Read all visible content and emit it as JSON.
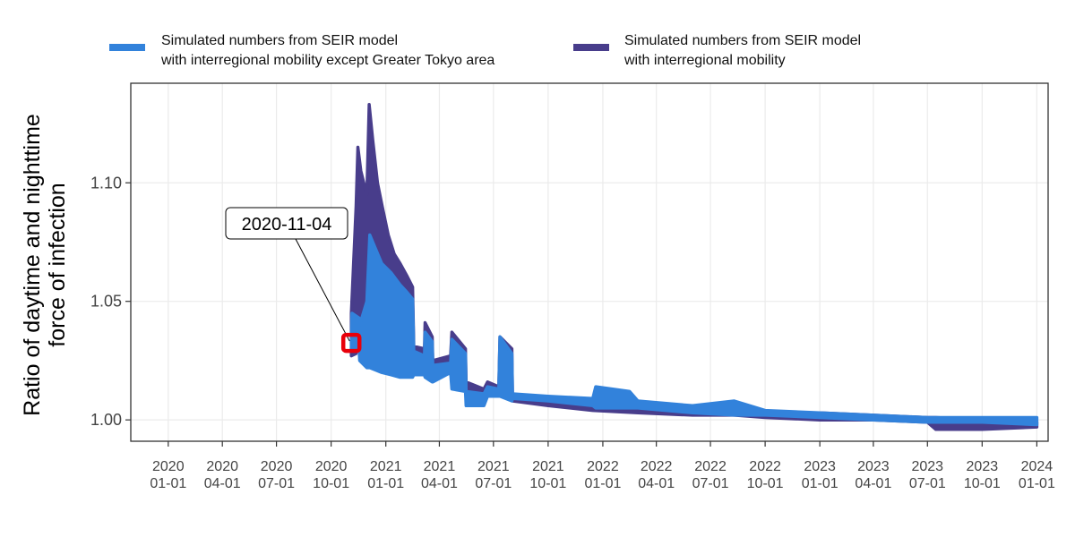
{
  "chart_data": {
    "type": "line",
    "title": "",
    "xlabel": "",
    "ylabel_lines": [
      "Ratio of daytime and nighttime",
      "force of infection"
    ],
    "xlim": [
      "2019-10-30",
      "2024-01-20"
    ],
    "ylim": [
      0.991,
      1.142
    ],
    "grid": true,
    "legend_position": "top",
    "x_ticks": [
      {
        "date": "2020-01-01",
        "line1": "2020",
        "line2": "01-01"
      },
      {
        "date": "2020-04-01",
        "line1": "2020",
        "line2": "04-01"
      },
      {
        "date": "2020-07-01",
        "line1": "2020",
        "line2": "07-01"
      },
      {
        "date": "2020-10-01",
        "line1": "2020",
        "line2": "10-01"
      },
      {
        "date": "2021-01-01",
        "line1": "2021",
        "line2": "01-01"
      },
      {
        "date": "2021-04-01",
        "line1": "2021",
        "line2": "04-01"
      },
      {
        "date": "2021-07-01",
        "line1": "2021",
        "line2": "07-01"
      },
      {
        "date": "2021-10-01",
        "line1": "2021",
        "line2": "10-01"
      },
      {
        "date": "2022-01-01",
        "line1": "2022",
        "line2": "01-01"
      },
      {
        "date": "2022-04-01",
        "line1": "2022",
        "line2": "04-01"
      },
      {
        "date": "2022-07-01",
        "line1": "2022",
        "line2": "07-01"
      },
      {
        "date": "2022-10-01",
        "line1": "2022",
        "line2": "10-01"
      },
      {
        "date": "2023-01-01",
        "line1": "2023",
        "line2": "01-01"
      },
      {
        "date": "2023-04-01",
        "line1": "2023",
        "line2": "04-01"
      },
      {
        "date": "2023-07-01",
        "line1": "2023",
        "line2": "07-01"
      },
      {
        "date": "2023-10-01",
        "line1": "2023",
        "line2": "10-01"
      },
      {
        "date": "2024-01-01",
        "line1": "2024",
        "line2": "01-01"
      }
    ],
    "y_ticks": [
      {
        "value": 1.0,
        "label": "1.00"
      },
      {
        "value": 1.05,
        "label": "1.05"
      },
      {
        "value": 1.1,
        "label": "1.10"
      }
    ],
    "series": [
      {
        "name_lines": [
          "Simulated numbers from SEIR model",
          "with interregional mobility"
        ],
        "color": "#483D8B",
        "bands": [
          {
            "x": "2020-11-04",
            "low": 1.027,
            "high": 1.045
          },
          {
            "x": "2020-11-12",
            "low": 1.028,
            "high": 1.09
          },
          {
            "x": "2020-11-15",
            "low": 1.045,
            "high": 1.115
          },
          {
            "x": "2020-11-20",
            "low": 1.04,
            "high": 1.105
          },
          {
            "x": "2020-11-25",
            "low": 1.045,
            "high": 1.1
          },
          {
            "x": "2020-11-30",
            "low": 1.04,
            "high": 1.095
          },
          {
            "x": "2020-12-04",
            "low": 1.04,
            "high": 1.133
          },
          {
            "x": "2020-12-10",
            "low": 1.04,
            "high": 1.118
          },
          {
            "x": "2020-12-18",
            "low": 1.03,
            "high": 1.1
          },
          {
            "x": "2020-12-26",
            "low": 1.028,
            "high": 1.09
          },
          {
            "x": "2021-01-05",
            "low": 1.025,
            "high": 1.078
          },
          {
            "x": "2021-01-15",
            "low": 1.022,
            "high": 1.07
          },
          {
            "x": "2021-01-25",
            "low": 1.021,
            "high": 1.066
          },
          {
            "x": "2021-02-05",
            "low": 1.02,
            "high": 1.061
          },
          {
            "x": "2021-02-15",
            "low": 1.02,
            "high": 1.056
          },
          {
            "x": "2021-02-17",
            "low": 1.02,
            "high": 1.031
          },
          {
            "x": "2021-03-07",
            "low": 1.021,
            "high": 1.03
          },
          {
            "x": "2021-03-08",
            "low": 1.02,
            "high": 1.041
          },
          {
            "x": "2021-03-20",
            "low": 1.018,
            "high": 1.035
          },
          {
            "x": "2021-03-21",
            "low": 1.018,
            "high": 1.025
          },
          {
            "x": "2021-04-20",
            "low": 1.021,
            "high": 1.027
          },
          {
            "x": "2021-04-22",
            "low": 1.021,
            "high": 1.037
          },
          {
            "x": "2021-05-15",
            "low": 1.015,
            "high": 1.03
          },
          {
            "x": "2021-05-16",
            "low": 1.012,
            "high": 1.016
          },
          {
            "x": "2021-06-15",
            "low": 1.01,
            "high": 1.013
          },
          {
            "x": "2021-06-21",
            "low": 1.012,
            "high": 1.016
          },
          {
            "x": "2021-07-10",
            "low": 1.011,
            "high": 1.014
          },
          {
            "x": "2021-07-12",
            "low": 1.025,
            "high": 1.035
          },
          {
            "x": "2021-08-01",
            "low": 1.022,
            "high": 1.03
          },
          {
            "x": "2021-08-02",
            "low": 1.008,
            "high": 1.01
          },
          {
            "x": "2021-10-01",
            "low": 1.006,
            "high": 1.009
          },
          {
            "x": "2021-12-15",
            "low": 1.004,
            "high": 1.007
          },
          {
            "x": "2022-03-01",
            "low": 1.003,
            "high": 1.006
          },
          {
            "x": "2022-06-01",
            "low": 1.002,
            "high": 1.004
          },
          {
            "x": "2022-08-10",
            "low": 1.002,
            "high": 1.006
          },
          {
            "x": "2022-10-01",
            "low": 1.001,
            "high": 1.003
          },
          {
            "x": "2023-01-01",
            "low": 1.0,
            "high": 1.003
          },
          {
            "x": "2023-04-01",
            "low": 1.0,
            "high": 1.002
          },
          {
            "x": "2023-07-01",
            "low": 0.999,
            "high": 1.001
          },
          {
            "x": "2023-07-15",
            "low": 0.996,
            "high": 1.001
          },
          {
            "x": "2023-10-01",
            "low": 0.996,
            "high": 1.0
          },
          {
            "x": "2024-01-01",
            "low": 0.997,
            "high": 0.999
          }
        ]
      },
      {
        "name_lines": [
          "Simulated numbers from SEIR model",
          "with interregional mobility except Greater Tokyo area"
        ],
        "color": "#3282DB",
        "bands": [
          {
            "x": "2020-11-04",
            "low": 1.03,
            "high": 1.033
          },
          {
            "x": "2020-11-05",
            "low": 1.03,
            "high": 1.045
          },
          {
            "x": "2020-11-17",
            "low": 1.03,
            "high": 1.043
          },
          {
            "x": "2020-11-18",
            "low": 1.025,
            "high": 1.04
          },
          {
            "x": "2020-11-30",
            "low": 1.022,
            "high": 1.05
          },
          {
            "x": "2020-12-05",
            "low": 1.022,
            "high": 1.078
          },
          {
            "x": "2020-12-15",
            "low": 1.021,
            "high": 1.072
          },
          {
            "x": "2020-12-25",
            "low": 1.02,
            "high": 1.066
          },
          {
            "x": "2021-01-10",
            "low": 1.019,
            "high": 1.062
          },
          {
            "x": "2021-01-25",
            "low": 1.018,
            "high": 1.057
          },
          {
            "x": "2021-02-05",
            "low": 1.018,
            "high": 1.054
          },
          {
            "x": "2021-02-15",
            "low": 1.018,
            "high": 1.051
          },
          {
            "x": "2021-02-17",
            "low": 1.019,
            "high": 1.029
          },
          {
            "x": "2021-03-07",
            "low": 1.019,
            "high": 1.027
          },
          {
            "x": "2021-03-08",
            "low": 1.018,
            "high": 1.037
          },
          {
            "x": "2021-03-20",
            "low": 1.016,
            "high": 1.033
          },
          {
            "x": "2021-03-21",
            "low": 1.016,
            "high": 1.023
          },
          {
            "x": "2021-04-20",
            "low": 1.02,
            "high": 1.024
          },
          {
            "x": "2021-04-22",
            "low": 1.013,
            "high": 1.034
          },
          {
            "x": "2021-05-15",
            "low": 1.012,
            "high": 1.028
          },
          {
            "x": "2021-05-16",
            "low": 1.006,
            "high": 1.012
          },
          {
            "x": "2021-06-15",
            "low": 1.006,
            "high": 1.011
          },
          {
            "x": "2021-06-21",
            "low": 1.01,
            "high": 1.014
          },
          {
            "x": "2021-07-10",
            "low": 1.01,
            "high": 1.013
          },
          {
            "x": "2021-07-12",
            "low": 1.01,
            "high": 1.035
          },
          {
            "x": "2021-08-01",
            "low": 1.008,
            "high": 1.028
          },
          {
            "x": "2021-08-02",
            "low": 1.009,
            "high": 1.011
          },
          {
            "x": "2021-10-01",
            "low": 1.008,
            "high": 1.01
          },
          {
            "x": "2021-12-15",
            "low": 1.006,
            "high": 1.009
          },
          {
            "x": "2021-12-20",
            "low": 1.005,
            "high": 1.014
          },
          {
            "x": "2022-02-15",
            "low": 1.005,
            "high": 1.012
          },
          {
            "x": "2022-03-01",
            "low": 1.005,
            "high": 1.008
          },
          {
            "x": "2022-06-01",
            "low": 1.003,
            "high": 1.006
          },
          {
            "x": "2022-08-10",
            "low": 1.002,
            "high": 1.008
          },
          {
            "x": "2022-10-01",
            "low": 1.002,
            "high": 1.004
          },
          {
            "x": "2023-01-01",
            "low": 1.001,
            "high": 1.003
          },
          {
            "x": "2023-04-01",
            "low": 1.0,
            "high": 1.002
          },
          {
            "x": "2023-07-01",
            "low": 0.999,
            "high": 1.001
          },
          {
            "x": "2023-10-01",
            "low": 0.999,
            "high": 1.001
          },
          {
            "x": "2024-01-01",
            "low": 0.998,
            "high": 1.001
          }
        ]
      }
    ],
    "annotation": {
      "label": "2020-11-04",
      "x": "2020-11-04",
      "y": 1.0325,
      "marker_color": "#E8000B"
    }
  },
  "legend": [
    {
      "series_index": 1,
      "line1": "Simulated numbers from SEIR model",
      "line2": "with interregional mobility except Greater Tokyo area"
    },
    {
      "series_index": 0,
      "line1": "Simulated numbers from SEIR model",
      "line2": "with interregional mobility"
    }
  ]
}
